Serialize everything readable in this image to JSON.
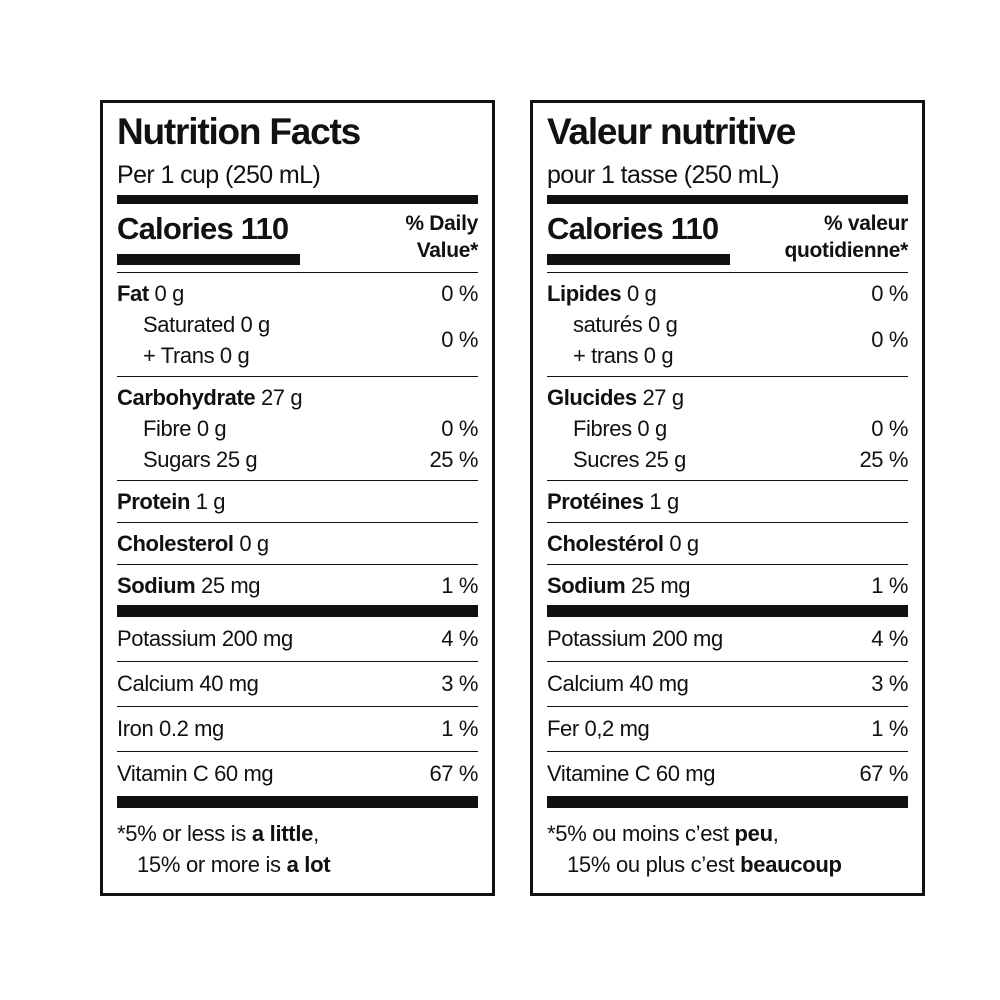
{
  "labels": [
    {
      "title": "Nutrition Facts",
      "serving": "Per 1 cup (250 mL)",
      "calories": "Calories 110",
      "daily_value": [
        "% Daily",
        "Value*"
      ],
      "sections": [
        [
          {
            "name": "Fat",
            "amount": "0 g",
            "percent": "0 %"
          },
          {
            "sub": [
              "Saturated 0 g",
              "+ Trans 0 g"
            ],
            "percent": "0 %"
          }
        ],
        [
          {
            "name": "Carbohydrate",
            "amount": "27 g"
          },
          {
            "sub": [
              "Fibre 0 g"
            ],
            "percent": "0 %"
          },
          {
            "sub": [
              "Sugars 25 g"
            ],
            "percent": "25 %"
          }
        ],
        [
          {
            "name": "Protein",
            "amount": "1 g"
          }
        ],
        [
          {
            "name": "Cholesterol",
            "amount": "0 g"
          }
        ],
        [
          {
            "name": "Sodium",
            "amount": "25 mg",
            "percent": "1 %"
          }
        ]
      ],
      "minerals": [
        {
          "text": "Potassium 200 mg",
          "percent": "4 %"
        },
        {
          "text": "Calcium 40 mg",
          "percent": "3 %"
        },
        {
          "text": "Iron 0.2 mg",
          "percent": "1 %"
        },
        {
          "text": "Vitamin C 60 mg",
          "percent": "67 %"
        }
      ],
      "footnote": [
        [
          "*5% or less is",
          "a little",
          ","
        ],
        [
          "15% or more is",
          "a lot"
        ]
      ]
    },
    {
      "title": "Valeur nutritive",
      "serving": "pour 1 tasse (250 mL)",
      "calories": "Calories 110",
      "daily_value": [
        "% valeur",
        "quotidienne*"
      ],
      "sections": [
        [
          {
            "name": "Lipides",
            "amount": "0 g",
            "percent": "0 %"
          },
          {
            "sub": [
              "saturés 0 g",
              "+ trans 0 g"
            ],
            "percent": "0 %"
          }
        ],
        [
          {
            "name": "Glucides",
            "amount": "27 g"
          },
          {
            "sub": [
              "Fibres 0 g"
            ],
            "percent": "0 %"
          },
          {
            "sub": [
              "Sucres 25 g"
            ],
            "percent": "25 %"
          }
        ],
        [
          {
            "name": "Protéines",
            "amount": "1 g"
          }
        ],
        [
          {
            "name": "Cholestérol",
            "amount": "0 g"
          }
        ],
        [
          {
            "name": "Sodium",
            "amount": "25 mg",
            "percent": "1 %"
          }
        ]
      ],
      "minerals": [
        {
          "text": "Potassium 200 mg",
          "percent": "4 %"
        },
        {
          "text": "Calcium 40 mg",
          "percent": "3 %"
        },
        {
          "text": "Fer 0,2 mg",
          "percent": "1 %"
        },
        {
          "text": "Vitamine C 60 mg",
          "percent": "67 %"
        }
      ],
      "footnote": [
        [
          "*5% ou moins c’est",
          "peu",
          ","
        ],
        [
          "15% ou plus c’est",
          "beaucoup"
        ]
      ]
    }
  ]
}
